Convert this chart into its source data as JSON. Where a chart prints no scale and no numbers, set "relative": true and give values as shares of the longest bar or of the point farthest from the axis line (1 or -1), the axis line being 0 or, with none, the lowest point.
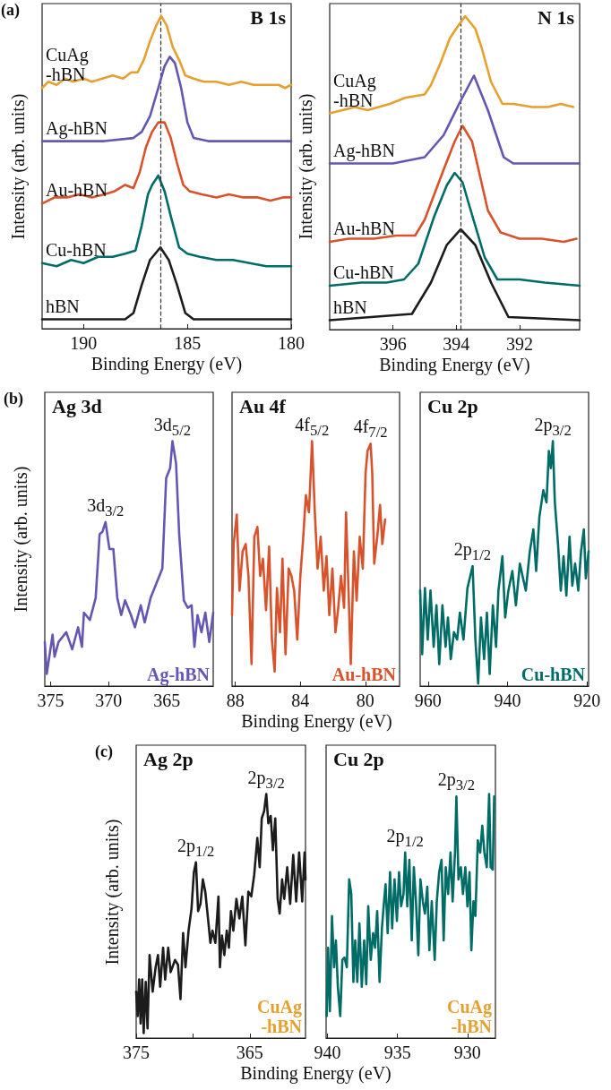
{
  "chart_data": [
    {
      "type": "line",
      "relative": true,
      "title": "B 1s",
      "xlabel": "Binding Energy (eV)",
      "ylabel": "Intensity (arb. units)",
      "xlim": [
        192,
        180
      ],
      "xticks": [
        190,
        185,
        180
      ],
      "annotations": [
        "(a)"
      ],
      "ref_lines": [
        {
          "axis": "x",
          "value": 186.3,
          "line_style": "dashed",
          "color": "#333333"
        }
      ],
      "series": [
        {
          "name": "hBN",
          "color": "#1c1c1c",
          "x": [
            192,
            188,
            187.6,
            187.2,
            186.8,
            186.3,
            185.9,
            185.5,
            185.1,
            184.7,
            180
          ],
          "values": [
            0.03,
            0.03,
            0.05,
            0.14,
            0.22,
            0.26,
            0.22,
            0.14,
            0.05,
            0.03,
            0.03
          ]
        },
        {
          "name": "Cu-hBN",
          "color": "#006c67",
          "x": [
            192,
            191.3,
            190.6,
            190,
            189.3,
            188.6,
            188,
            187.5,
            187.2,
            186.9,
            186.7,
            186.4,
            186.1,
            185.8,
            185.4,
            185,
            184.4,
            183.6,
            182.8,
            182,
            181.2,
            180.5,
            180
          ],
          "values": [
            0.21,
            0.2,
            0.22,
            0.21,
            0.23,
            0.23,
            0.24,
            0.25,
            0.33,
            0.43,
            0.46,
            0.49,
            0.44,
            0.36,
            0.26,
            0.24,
            0.23,
            0.22,
            0.22,
            0.21,
            0.2,
            0.2,
            0.2
          ]
        },
        {
          "name": "Au-hBN",
          "color": "#d8532c",
          "x": [
            192,
            191.4,
            190.8,
            190.2,
            189.6,
            189,
            188.5,
            188,
            187.6,
            187.3,
            187,
            186.7,
            186.4,
            186.1,
            185.8,
            185.5,
            185.2,
            184.9,
            184.3,
            183.6,
            183,
            182.3,
            181.6,
            181,
            180.4,
            180
          ],
          "values": [
            0.4,
            0.42,
            0.42,
            0.43,
            0.42,
            0.43,
            0.44,
            0.46,
            0.45,
            0.5,
            0.58,
            0.63,
            0.66,
            0.66,
            0.61,
            0.53,
            0.46,
            0.44,
            0.43,
            0.42,
            0.43,
            0.42,
            0.42,
            0.41,
            0.42,
            0.42
          ]
        },
        {
          "name": "Ag-hBN",
          "color": "#6656b4",
          "x": [
            192,
            189,
            187.6,
            187.2,
            186.8,
            186.4,
            186.1,
            185.85,
            185.6,
            185.3,
            185,
            184.7,
            184,
            180
          ],
          "values": [
            0.6,
            0.6,
            0.61,
            0.63,
            0.68,
            0.77,
            0.84,
            0.87,
            0.85,
            0.77,
            0.66,
            0.61,
            0.6,
            0.6
          ]
        },
        {
          "name": "CuAg\n-hBN",
          "color": "#e5a02e",
          "x": [
            192,
            191.7,
            191.3,
            190.9,
            190.5,
            190,
            189.6,
            189.1,
            188.6,
            188.1,
            187.7,
            187.4,
            187.1,
            186.8,
            186.5,
            186.26,
            186,
            185.7,
            185.4,
            185.1,
            184.7,
            184.2,
            183.6,
            183,
            182.4,
            181.8,
            181.2,
            180.6,
            180.3,
            180
          ],
          "values": [
            0.77,
            0.79,
            0.78,
            0.8,
            0.79,
            0.8,
            0.79,
            0.8,
            0.81,
            0.8,
            0.82,
            0.82,
            0.86,
            0.92,
            0.97,
            1.0,
            0.97,
            0.9,
            0.86,
            0.81,
            0.8,
            0.79,
            0.79,
            0.78,
            0.79,
            0.78,
            0.78,
            0.78,
            0.77,
            0.78
          ]
        }
      ]
    },
    {
      "type": "line",
      "relative": true,
      "title": "N 1s",
      "xlabel": "Binding Energy (eV)",
      "ylabel": "Intensity (arb. units)",
      "xlim": [
        398,
        390.1
      ],
      "xticks": [
        396,
        394,
        392
      ],
      "ref_lines": [
        {
          "axis": "x",
          "value": 393.85,
          "line_style": "dashed",
          "color": "#333333"
        }
      ],
      "series": [
        {
          "name": "hBN",
          "color": "#1c1c1c",
          "x": [
            398,
            395.4,
            394.8,
            394.3,
            393.86,
            393.4,
            392.9,
            392.35,
            390.1
          ],
          "values": [
            0.03,
            0.05,
            0.15,
            0.27,
            0.32,
            0.27,
            0.15,
            0.04,
            0.03
          ]
        },
        {
          "name": "Cu-hBN",
          "color": "#006c67",
          "x": [
            398,
            397,
            396.2,
            395.65,
            395.2,
            394.7,
            394.3,
            394.05,
            393.8,
            393.6,
            393.1,
            392.7,
            392,
            391.2,
            390.1
          ],
          "values": [
            0.14,
            0.15,
            0.15,
            0.16,
            0.21,
            0.36,
            0.46,
            0.5,
            0.47,
            0.4,
            0.23,
            0.16,
            0.16,
            0.15,
            0.14
          ]
        },
        {
          "name": "Au-hBN",
          "color": "#d8532c",
          "x": [
            398,
            397.4,
            396.6,
            395.9,
            395.3,
            395,
            394.4,
            394.05,
            393.8,
            393.5,
            393,
            392.6,
            392,
            391.3,
            390.6,
            390.2
          ],
          "values": [
            0.28,
            0.29,
            0.29,
            0.3,
            0.3,
            0.35,
            0.51,
            0.6,
            0.65,
            0.6,
            0.38,
            0.31,
            0.29,
            0.29,
            0.28,
            0.29
          ]
        },
        {
          "name": "Ag-hBN",
          "color": "#6656b4",
          "x": [
            398,
            396,
            395,
            394.4,
            393.86,
            393.44,
            393,
            392.5,
            392.2,
            390.1
          ],
          "values": [
            0.53,
            0.53,
            0.55,
            0.62,
            0.73,
            0.81,
            0.7,
            0.55,
            0.53,
            0.53
          ]
        },
        {
          "name": "CuAg\n-hBN",
          "color": "#e5a02e",
          "x": [
            398,
            397.6,
            397.2,
            396.8,
            396.1,
            395.6,
            395,
            394.8,
            394.5,
            394.2,
            394,
            393.72,
            393.4,
            393.2,
            392.9,
            392.54,
            392.2,
            391.6,
            391.1,
            390.7,
            390.3
          ],
          "values": [
            0.69,
            0.7,
            0.71,
            0.7,
            0.72,
            0.74,
            0.75,
            0.78,
            0.85,
            0.93,
            0.96,
            1.0,
            0.96,
            0.9,
            0.79,
            0.72,
            0.72,
            0.71,
            0.71,
            0.72,
            0.71
          ]
        }
      ]
    },
    {
      "type": "line",
      "relative": true,
      "title": "Ag 3d",
      "ylabel": "Intensity (arb. units)",
      "xlim": [
        375.5,
        361
      ],
      "xticks": [
        375,
        370,
        365
      ],
      "annotations": [
        "(b)",
        {
          "text": "3d$_{3/2}$",
          "x": 370.27,
          "y": 0.67
        },
        {
          "text": "3d$_{5/2}$",
          "x": 364.51,
          "y": 1.0
        }
      ],
      "series": [
        {
          "name": "Ag-hBN",
          "color": "#6656b4",
          "x": [
            375.5,
            375.33,
            374.83,
            374.66,
            374.32,
            373.65,
            373.14,
            372.63,
            372.3,
            372.13,
            371.62,
            371.12,
            370.78,
            370.54,
            370.27,
            369.94,
            369.6,
            369.26,
            368.92,
            368.59,
            368.08,
            367.74,
            367.24,
            366.9,
            366.39,
            365.89,
            365.38,
            365.05,
            364.71,
            364.51,
            364.2,
            363.93,
            363.53,
            363.19,
            362.86,
            362.62,
            362.35,
            362.01,
            361.68,
            361.34,
            361.0
          ],
          "values": [
            0.18,
            0.05,
            0.21,
            0.12,
            0.18,
            0.22,
            0.15,
            0.24,
            0.16,
            0.3,
            0.27,
            0.36,
            0.62,
            0.63,
            0.67,
            0.56,
            0.56,
            0.36,
            0.29,
            0.35,
            0.29,
            0.24,
            0.33,
            0.26,
            0.36,
            0.42,
            0.48,
            0.85,
            0.89,
            1.0,
            0.91,
            0.62,
            0.35,
            0.32,
            0.33,
            0.16,
            0.29,
            0.22,
            0.3,
            0.18,
            0.3
          ]
        }
      ]
    },
    {
      "type": "line",
      "relative": true,
      "title": "Au 4f",
      "xlabel": "Binding Energy (eV)",
      "xlim": [
        88.2,
        77.9
      ],
      "xticks": [
        88,
        84,
        80
      ],
      "annotations": [
        {
          "text": "4f$_{5/2}$",
          "x": 83.28,
          "y": 1.0
        },
        {
          "text": "4f$_{7/2}$",
          "x": 79.68,
          "y": 0.99
        }
      ],
      "series": [
        {
          "name": "Au-hBN",
          "color": "#d8532c",
          "x": [
            88.2,
            88.1,
            87.91,
            87.74,
            87.55,
            87.36,
            87.19,
            87.0,
            86.83,
            86.64,
            86.47,
            86.3,
            86.11,
            85.92,
            85.75,
            85.58,
            85.44,
            85.25,
            85.1,
            84.91,
            84.72,
            84.55,
            84.38,
            84.19,
            84.0,
            83.83,
            83.66,
            83.47,
            83.28,
            83.11,
            82.94,
            82.75,
            82.56,
            82.39,
            82.22,
            82.03,
            81.84,
            81.67,
            81.5,
            81.31,
            81.19,
            81.02,
            80.9,
            80.71,
            80.54,
            80.35,
            80.16,
            79.99,
            79.87,
            79.68,
            79.58,
            79.46,
            79.27,
            79.1,
            78.96,
            78.79
          ],
          "values": [
            0.29,
            0.58,
            0.7,
            0.39,
            0.55,
            0.58,
            0.45,
            0.09,
            0.61,
            0.65,
            0.45,
            0.52,
            0.31,
            0.57,
            0.19,
            0.06,
            0.4,
            0.22,
            0.52,
            0.13,
            0.48,
            0.45,
            0.39,
            0.19,
            0.45,
            0.6,
            0.78,
            0.71,
            1.0,
            0.71,
            0.48,
            0.61,
            0.39,
            0.53,
            0.29,
            0.48,
            0.22,
            0.32,
            0.45,
            0.32,
            0.71,
            0.35,
            0.09,
            0.55,
            0.35,
            0.61,
            0.48,
            0.87,
            0.96,
            0.99,
            0.87,
            0.5,
            0.61,
            0.74,
            0.58,
            0.68
          ]
        }
      ]
    },
    {
      "type": "line",
      "relative": true,
      "title": "Cu 2p",
      "xlim": [
        962,
        919.6
      ],
      "xticks": [
        960,
        940,
        920
      ],
      "annotations": [
        {
          "text": "2p$_{1/2}$",
          "x": 948.8,
          "y": 0.49
        },
        {
          "text": "2p$_{3/2}$",
          "x": 928.6,
          "y": 1.0
        }
      ],
      "series": [
        {
          "name": "Cu-hBN",
          "color": "#006c67",
          "x": [
            962,
            961.5,
            960.8,
            960.1,
            959.4,
            958.6,
            957.9,
            957.2,
            956.4,
            955.6,
            955.0,
            954.3,
            953.5,
            952.7,
            952.0,
            951.1,
            950.1,
            948.8,
            948.1,
            947.4,
            946.7,
            945.9,
            945.2,
            944.5,
            943.7,
            942.9,
            942.3,
            941.3,
            940.6,
            939.8,
            938.8,
            937.9,
            936.9,
            936.1,
            935.4,
            934.4,
            933.5,
            932.8,
            932.0,
            931.0,
            930.2,
            929.6,
            929.1,
            928.6,
            928.1,
            927.3,
            926.6,
            925.9,
            925.2,
            924.4,
            923.7,
            923.0,
            922.2,
            921.5,
            920.8,
            920.3,
            919.6
          ],
          "values": [
            0.39,
            0.13,
            0.4,
            0.19,
            0.39,
            0.16,
            0.33,
            0.09,
            0.33,
            0.16,
            0.28,
            0.11,
            0.22,
            0.19,
            0.3,
            0.19,
            0.4,
            0.49,
            0.19,
            0.01,
            0.28,
            0.11,
            0.3,
            0.05,
            0.33,
            0.16,
            0.39,
            0.53,
            0.28,
            0.39,
            0.47,
            0.33,
            0.5,
            0.44,
            0.39,
            0.55,
            0.64,
            0.47,
            0.69,
            0.8,
            0.75,
            0.96,
            0.89,
            1.0,
            0.75,
            0.58,
            0.39,
            0.53,
            0.37,
            0.61,
            0.41,
            0.5,
            0.39,
            0.55,
            0.64,
            0.44,
            0.55
          ]
        }
      ]
    },
    {
      "type": "line",
      "relative": true,
      "title": "Ag 2p",
      "subtitle": "CuAg\n-hBN",
      "xlabel": "Binding Energy (eV)",
      "ylabel": "Intensity (arb. units)",
      "xlim": [
        375,
        360.1
      ],
      "xticks": [
        375,
        {
          "value": 370,
          "label": null
        },
        365
      ],
      "annotations": [
        "(c)",
        {
          "text": "2p$_{1/2}$",
          "x": 369.74,
          "y": 0.72
        },
        {
          "text": "2p$_{3/2}$",
          "x": 363.55,
          "y": 1.0
        }
      ],
      "series": [
        {
          "color": "#1c1c1c",
          "x": [
            375,
            374.87,
            374.74,
            374.61,
            374.47,
            374.34,
            374.16,
            374.0,
            373.82,
            373.55,
            373.29,
            373.08,
            372.89,
            372.63,
            372.45,
            372.18,
            371.97,
            371.58,
            371.32,
            371.1,
            370.87,
            370.66,
            370.39,
            370.13,
            369.92,
            369.74,
            369.55,
            369.34,
            369.13,
            368.92,
            368.68,
            368.47,
            368.29,
            368.03,
            367.76,
            367.63,
            367.45,
            367.24,
            367.03,
            366.84,
            366.66,
            366.45,
            366.18,
            365.92,
            365.66,
            365.39,
            365.13,
            364.87,
            364.61,
            364.34,
            364.13,
            363.95,
            363.74,
            363.55,
            363.37,
            363.16,
            362.97,
            362.76,
            362.55,
            362.37,
            362.16,
            361.97,
            361.71,
            361.45,
            361.18,
            360.92,
            360.66,
            360.39,
            360.18,
            360.1
          ],
          "values": [
            0.19,
            0.09,
            0.24,
            0.06,
            0.24,
            0.02,
            0.23,
            0.04,
            0.34,
            0.19,
            0.29,
            0.34,
            0.21,
            0.37,
            0.24,
            0.37,
            0.27,
            0.32,
            0.3,
            0.16,
            0.43,
            0.29,
            0.44,
            0.53,
            0.68,
            0.72,
            0.52,
            0.55,
            0.65,
            0.6,
            0.49,
            0.39,
            0.44,
            0.39,
            0.58,
            0.29,
            0.42,
            0.34,
            0.44,
            0.37,
            0.52,
            0.44,
            0.57,
            0.49,
            0.58,
            0.38,
            0.6,
            0.58,
            0.67,
            0.82,
            0.7,
            0.9,
            0.93,
            1.0,
            0.88,
            0.91,
            0.77,
            0.9,
            0.57,
            0.51,
            0.65,
            0.57,
            0.7,
            0.55,
            0.75,
            0.56,
            0.76,
            0.56,
            0.76,
            0.65
          ]
        }
      ]
    },
    {
      "type": "line",
      "relative": true,
      "title": "Cu 2p",
      "subtitle": "CuAg\n-hBN",
      "xlim": [
        940.1,
        928
      ],
      "xticks": [
        940,
        935,
        930
      ],
      "annotations": [
        {
          "text": "2p$_{1/2}$",
          "x": 934.45,
          "y": 0.76
        },
        {
          "text": "2p$_{3/2}$",
          "x": 930.79,
          "y": 0.99
        }
      ],
      "series": [
        {
          "color": "#006c67",
          "x": [
            940.06,
            939.96,
            939.83,
            939.68,
            939.53,
            939.4,
            939.26,
            939.09,
            938.94,
            938.79,
            938.62,
            938.45,
            938.3,
            938.15,
            938.02,
            937.87,
            937.72,
            937.55,
            937.38,
            937.23,
            937.09,
            936.91,
            936.74,
            936.6,
            936.45,
            936.28,
            936.11,
            935.96,
            935.85,
            935.7,
            935.53,
            935.38,
            935.21,
            935.04,
            934.89,
            934.74,
            934.57,
            934.45,
            934.3,
            934.15,
            933.98,
            933.83,
            933.68,
            933.51,
            933.36,
            933.19,
            933.04,
            932.87,
            932.72,
            932.55,
            932.34,
            932.19,
            932.02,
            931.85,
            931.7,
            931.55,
            931.38,
            931.21,
            931.06,
            930.89,
            930.79,
            930.64,
            930.47,
            930.32,
            930.15,
            930.0,
            929.85,
            929.72,
            929.57,
            929.43,
            929.26,
            929.09,
            928.94,
            928.79,
            928.62,
            928.45,
            928.34,
            928.19,
            928.09
          ],
          "values": [
            0.09,
            0.37,
            0.11,
            0.5,
            0.29,
            0.4,
            0.21,
            0.09,
            0.32,
            0.33,
            0.29,
            0.65,
            0.59,
            0.23,
            0.4,
            0.23,
            0.47,
            0.21,
            0.4,
            0.22,
            0.54,
            0.32,
            0.43,
            0.37,
            0.52,
            0.23,
            0.45,
            0.56,
            0.63,
            0.43,
            0.68,
            0.45,
            0.65,
            0.48,
            0.68,
            0.54,
            0.59,
            0.76,
            0.54,
            0.73,
            0.4,
            0.7,
            0.56,
            0.34,
            0.65,
            0.56,
            0.51,
            0.62,
            0.36,
            0.56,
            0.32,
            0.56,
            0.68,
            0.73,
            0.4,
            0.7,
            0.59,
            0.76,
            0.56,
            0.76,
            0.99,
            0.65,
            0.7,
            0.59,
            0.7,
            0.54,
            0.68,
            0.36,
            0.56,
            0.5,
            0.81,
            0.76,
            0.87,
            0.76,
            0.7,
            1.0,
            0.7,
            0.69,
            0.99
          ]
        }
      ]
    }
  ]
}
